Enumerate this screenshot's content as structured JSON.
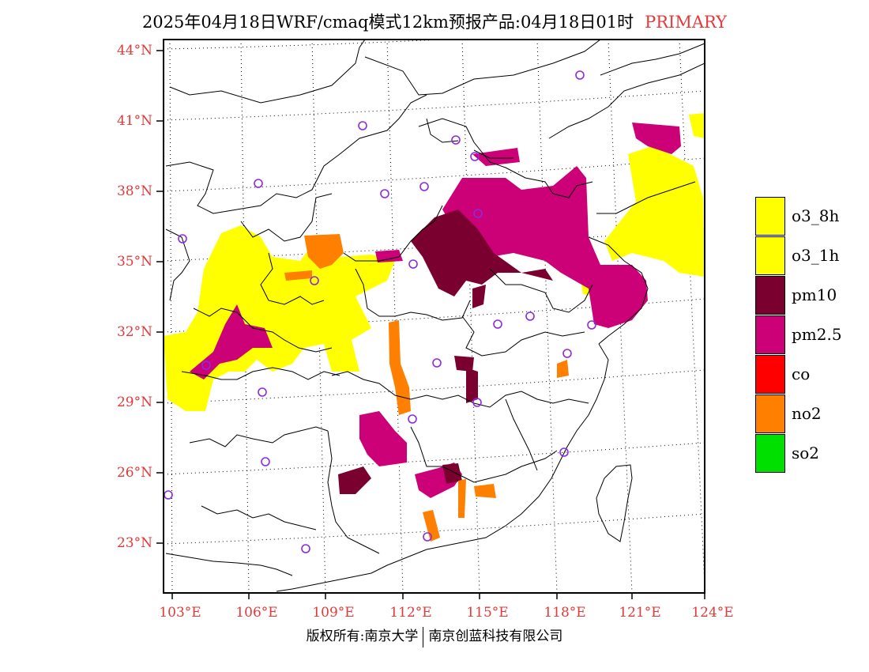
{
  "title": {
    "text": "2025年04月18日WRF/cmaq模式12km预报产品:04月18日01时",
    "tag": "PRIMARY"
  },
  "axes": {
    "lat_labels": [
      "44°N",
      "41°N",
      "38°N",
      "35°N",
      "32°N",
      "29°N",
      "26°N",
      "23°N"
    ],
    "lon_labels": [
      "103°E",
      "106°E",
      "109°E",
      "112°E",
      "115°E",
      "118°E",
      "121°E",
      "124°E"
    ]
  },
  "legend": [
    {
      "label": "o3_8h",
      "color": "#ffff00"
    },
    {
      "label": "o3_1h",
      "color": "#ffff00"
    },
    {
      "label": "pm10",
      "color": "#7a0030"
    },
    {
      "label": "pm2.5",
      "color": "#cc0077"
    },
    {
      "label": "co",
      "color": "#ff0000"
    },
    {
      "label": "no2",
      "color": "#ff7f00"
    },
    {
      "label": "so2",
      "color": "#00e000"
    }
  ],
  "footer": {
    "left": "版权所有:南京大学",
    "right": "南京创蓝科技有限公司"
  }
}
